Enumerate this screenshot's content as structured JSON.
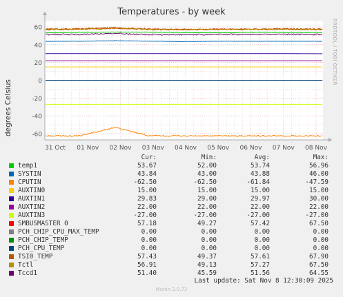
{
  "header": {
    "title": "Temperatures - by week",
    "side_label": "RRDTOOL / TOBI OETIKER"
  },
  "chart_data": {
    "type": "line",
    "title": "Temperatures - by week",
    "ylabel": "degrees Celsius",
    "ylim": [
      -67,
      67
    ],
    "yticks": [
      60,
      40,
      20,
      0,
      -20,
      -40,
      -60
    ],
    "x_ticks": [
      "31 Oct",
      "01 Nov",
      "02 Nov",
      "03 Nov",
      "04 Nov",
      "05 Nov",
      "06 Nov",
      "07 Nov",
      "08 Nov"
    ],
    "grid": true,
    "legend_position": "bottom",
    "series": [
      {
        "name": "temp1",
        "color": "#00cc00",
        "cur": "53.67",
        "min": "52.00",
        "avg": "53.74",
        "max": "56.96",
        "values": [
          53.5,
          53.8,
          54.2,
          54.0,
          53.6,
          53.4,
          53.9,
          53.7,
          53.7
        ]
      },
      {
        "name": "SYSTIN",
        "color": "#0066b3",
        "cur": "43.84",
        "min": "43.00",
        "avg": "43.88",
        "max": "46.00",
        "values": [
          43.8,
          43.9,
          44.5,
          44.0,
          43.5,
          43.9,
          43.8,
          43.9,
          43.8
        ]
      },
      {
        "name": "CPUTIN",
        "color": "#ff8000",
        "cur": "-62.50",
        "min": "-62.50",
        "avg": "-61.84",
        "max": "-47.59",
        "values": [
          -62.5,
          -62.5,
          -53.0,
          -62.5,
          -62.5,
          -62.5,
          -62.5,
          -62.5,
          -62.5
        ]
      },
      {
        "name": "AUXTIN0",
        "color": "#ffcc00",
        "cur": "15.00",
        "min": "15.00",
        "avg": "15.00",
        "max": "15.00",
        "values": [
          15,
          15,
          15,
          15,
          15,
          15,
          15,
          15,
          15
        ]
      },
      {
        "name": "AUXTIN1",
        "color": "#330099",
        "cur": "29.83",
        "min": "29.00",
        "avg": "29.97",
        "max": "30.00",
        "values": [
          30,
          30,
          30,
          30,
          30,
          30,
          30,
          30,
          29.83
        ]
      },
      {
        "name": "AUXTIN2",
        "color": "#990099",
        "cur": "22.00",
        "min": "22.00",
        "avg": "22.00",
        "max": "22.00",
        "values": [
          22,
          22,
          22,
          22,
          22,
          22,
          22,
          22,
          22
        ]
      },
      {
        "name": "AUXTIN3",
        "color": "#ccff00",
        "cur": "-27.00",
        "min": "-27.00",
        "avg": "-27.00",
        "max": "-27.00",
        "values": [
          -27,
          -27,
          -27,
          -27,
          -27,
          -27,
          -27,
          -27,
          -27
        ]
      },
      {
        "name": "SMBUSMASTER 0",
        "color": "#ff0000",
        "cur": "57.18",
        "min": "49.27",
        "avg": "57.42",
        "max": "67.50",
        "values": [
          57.2,
          57.5,
          58.5,
          57.3,
          57.0,
          57.4,
          57.3,
          57.5,
          57.2
        ]
      },
      {
        "name": "PCH_CHIP_CPU_MAX_TEMP",
        "color": "#808080",
        "cur": "0.00",
        "min": "0.00",
        "avg": "0.00",
        "max": "0.00",
        "values": [
          0,
          0,
          0,
          0,
          0,
          0,
          0,
          0,
          0
        ]
      },
      {
        "name": "PCH_CHIP_TEMP",
        "color": "#008f00",
        "cur": "0.00",
        "min": "0.00",
        "avg": "0.00",
        "max": "0.00",
        "values": [
          0,
          0,
          0,
          0,
          0,
          0,
          0,
          0,
          0
        ]
      },
      {
        "name": "PCH_CPU_TEMP",
        "color": "#00487d",
        "cur": "0.00",
        "min": "0.00",
        "avg": "0.00",
        "max": "0.00",
        "values": [
          0,
          0,
          0,
          0,
          0,
          0,
          0,
          0,
          0
        ]
      },
      {
        "name": "TSI0_TEMP",
        "color": "#b35a00",
        "cur": "57.43",
        "min": "49.37",
        "avg": "57.61",
        "max": "67.90",
        "values": [
          57.5,
          57.8,
          59.0,
          57.5,
          57.2,
          57.6,
          57.5,
          57.7,
          57.4
        ]
      },
      {
        "name": "Tctl",
        "color": "#b38f00",
        "cur": "56.91",
        "min": "49.13",
        "avg": "57.27",
        "max": "67.50",
        "values": [
          57.0,
          57.3,
          58.4,
          57.1,
          56.9,
          57.2,
          57.1,
          57.3,
          56.9
        ]
      },
      {
        "name": "Tccd1",
        "color": "#6b006b",
        "cur": "51.40",
        "min": "45.59",
        "avg": "51.56",
        "max": "64.55",
        "values": [
          51.5,
          51.6,
          52.5,
          51.4,
          51.3,
          51.6,
          51.5,
          51.7,
          51.4
        ]
      }
    ]
  },
  "legend": {
    "col_cur": "Cur:",
    "col_min": "Min:",
    "col_avg": "Avg:",
    "col_max": "Max:"
  },
  "footer": {
    "last_update": "Last update: Sat Nov  8 12:30:09 2025",
    "munin": "Munin 2.0.73"
  }
}
